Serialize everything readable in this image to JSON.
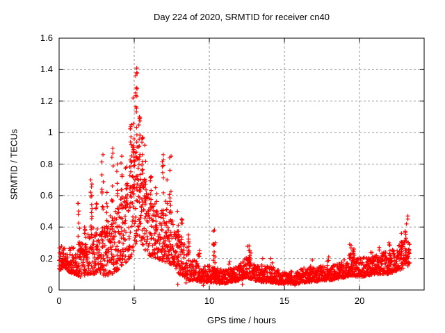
{
  "chart_data": {
    "type": "scatter",
    "title": "Day 224 of 2020, SRMTID for receiver cn40",
    "xlabel": "GPS time / hours",
    "ylabel": "SRMTID / TECUs",
    "xlim": [
      0,
      24.3
    ],
    "ylim": [
      0,
      1.6
    ],
    "xticks": [
      0,
      5,
      10,
      15,
      20
    ],
    "yticks": [
      0,
      0.2,
      0.4,
      0.6,
      0.8,
      1,
      1.2,
      1.4,
      1.6
    ],
    "ytick_labels": [
      "0",
      "0.2",
      "0.4",
      "0.6",
      "0.8",
      "1",
      "1.2",
      "1.4",
      "1.6"
    ],
    "grid": true,
    "legend": "none",
    "marker": "plus",
    "marker_color": "#ff0000",
    "marker_size_px": 7,
    "grid_color": "#969696",
    "axis_color": "#000000",
    "background_color": "#ffffff",
    "x_data_range": [
      0,
      23.35
    ],
    "sample_step_hours": 0.01,
    "seed": 224,
    "band_envelope_t_lo_hi": [
      [
        0,
        0.13,
        0.3
      ],
      [
        0.5,
        0.12,
        0.26
      ],
      [
        1,
        0.1,
        0.28
      ],
      [
        1.5,
        0.08,
        0.3
      ],
      [
        2,
        0.1,
        0.42
      ],
      [
        2.5,
        0.1,
        0.38
      ],
      [
        3,
        0.09,
        0.4
      ],
      [
        3.5,
        0.1,
        0.5
      ],
      [
        4,
        0.13,
        0.55
      ],
      [
        4.5,
        0.18,
        0.7
      ],
      [
        4.9,
        0.22,
        0.95
      ],
      [
        5.2,
        0.3,
        1.05
      ],
      [
        5.5,
        0.28,
        0.85
      ],
      [
        6,
        0.22,
        0.6
      ],
      [
        6.5,
        0.2,
        0.55
      ],
      [
        7,
        0.18,
        0.52
      ],
      [
        7.5,
        0.16,
        0.45
      ],
      [
        8,
        0.1,
        0.35
      ],
      [
        8.5,
        0.06,
        0.28
      ],
      [
        9,
        0.06,
        0.2
      ],
      [
        9.5,
        0.05,
        0.15
      ],
      [
        10,
        0.05,
        0.16
      ],
      [
        10.5,
        0.04,
        0.14
      ],
      [
        11,
        0.04,
        0.13
      ],
      [
        11.5,
        0.05,
        0.14
      ],
      [
        12,
        0.06,
        0.16
      ],
      [
        12.5,
        0.08,
        0.22
      ],
      [
        13,
        0.06,
        0.16
      ],
      [
        13.5,
        0.05,
        0.15
      ],
      [
        14,
        0.05,
        0.16
      ],
      [
        14.5,
        0.04,
        0.13
      ],
      [
        15,
        0.04,
        0.12
      ],
      [
        15.5,
        0.04,
        0.12
      ],
      [
        16,
        0.04,
        0.13
      ],
      [
        16.5,
        0.05,
        0.15
      ],
      [
        17,
        0.05,
        0.14
      ],
      [
        17.5,
        0.06,
        0.16
      ],
      [
        18,
        0.06,
        0.15
      ],
      [
        18.5,
        0.07,
        0.17
      ],
      [
        19,
        0.08,
        0.2
      ],
      [
        19.5,
        0.09,
        0.24
      ],
      [
        20,
        0.08,
        0.2
      ],
      [
        20.5,
        0.09,
        0.21
      ],
      [
        21,
        0.1,
        0.22
      ],
      [
        21.5,
        0.1,
        0.24
      ],
      [
        22,
        0.1,
        0.25
      ],
      [
        22.5,
        0.12,
        0.28
      ],
      [
        23,
        0.14,
        0.32
      ],
      [
        23.35,
        0.16,
        0.36
      ]
    ],
    "strand_events_t_top_n": [
      [
        1.3,
        0.55,
        10
      ],
      [
        1.75,
        0.4,
        8
      ],
      [
        2.15,
        0.7,
        14
      ],
      [
        2.5,
        0.55,
        8
      ],
      [
        2.9,
        0.86,
        14
      ],
      [
        3.2,
        0.62,
        8
      ],
      [
        3.55,
        0.9,
        12
      ],
      [
        3.9,
        0.8,
        10
      ],
      [
        4.15,
        0.85,
        12
      ],
      [
        4.45,
        0.78,
        10
      ],
      [
        4.75,
        1.05,
        16
      ],
      [
        4.95,
        1.22,
        16
      ],
      [
        5.15,
        1.41,
        22
      ],
      [
        5.35,
        1.1,
        16
      ],
      [
        5.55,
        0.97,
        12
      ],
      [
        5.75,
        0.92,
        10
      ],
      [
        6.1,
        0.72,
        8
      ],
      [
        6.45,
        0.65,
        8
      ],
      [
        6.9,
        0.86,
        12
      ],
      [
        7.15,
        0.7,
        8
      ],
      [
        7.4,
        0.85,
        12
      ],
      [
        7.9,
        0.5,
        8
      ],
      [
        8.15,
        0.45,
        8
      ],
      [
        8.6,
        0.35,
        6
      ],
      [
        9.3,
        0.25,
        6
      ],
      [
        10.3,
        0.38,
        10
      ],
      [
        10.35,
        0.3,
        5
      ],
      [
        11.3,
        0.18,
        4
      ],
      [
        12.6,
        0.28,
        8
      ],
      [
        12.75,
        0.25,
        6
      ],
      [
        13.5,
        0.2,
        5
      ],
      [
        14.15,
        0.2,
        5
      ],
      [
        16.8,
        0.19,
        4
      ],
      [
        17.9,
        0.21,
        5
      ],
      [
        19.4,
        0.29,
        8
      ],
      [
        19.6,
        0.26,
        6
      ],
      [
        20.8,
        0.24,
        5
      ],
      [
        21.3,
        0.27,
        6
      ],
      [
        22.0,
        0.3,
        6
      ],
      [
        22.8,
        0.36,
        6
      ],
      [
        23.1,
        0.42,
        5
      ],
      [
        23.25,
        0.47,
        3
      ]
    ],
    "outliers_t_v": [
      [
        7.9,
        0.035
      ],
      [
        8.45,
        0.045
      ],
      [
        9.6,
        0.03
      ],
      [
        12.2,
        0.035
      ],
      [
        15.7,
        0.03
      ]
    ]
  }
}
